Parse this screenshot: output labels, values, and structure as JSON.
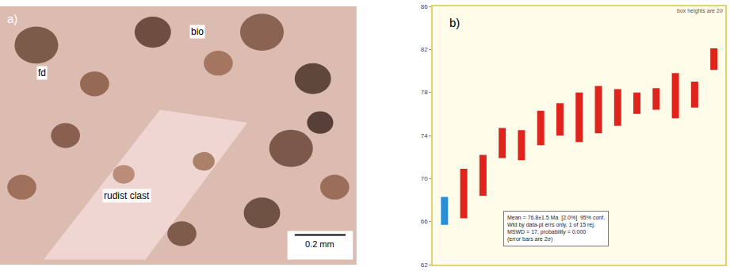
{
  "chart_data": {
    "type": "errorbar",
    "panel_label": "b)",
    "categories": [
      null,
      null,
      null,
      null,
      null,
      null,
      null,
      null,
      null,
      null,
      null,
      null,
      null,
      null,
      null
    ],
    "values": [
      67.0,
      68.6,
      70.3,
      73.3,
      73.1,
      74.7,
      75.5,
      75.7,
      76.4,
      76.6,
      77.0,
      77.4,
      77.7,
      77.8,
      81.1
    ],
    "errors": [
      1.3,
      2.3,
      1.9,
      1.4,
      1.4,
      1.6,
      1.5,
      2.3,
      2.2,
      1.7,
      1.0,
      1.0,
      2.1,
      1.2,
      1.0
    ],
    "colors": [
      "#2b8fd8",
      "#e0241c",
      "#e0241c",
      "#e0241c",
      "#e0241c",
      "#e0241c",
      "#e0241c",
      "#e0241c",
      "#e0241c",
      "#e0241c",
      "#e0241c",
      "#e0241c",
      "#e0241c",
      "#e0241c",
      "#e0241c"
    ],
    "ylim": [
      62,
      86
    ],
    "yticks": [
      62,
      66,
      70,
      74,
      78,
      82,
      86
    ],
    "grid": false,
    "tick_labels": "y",
    "corner_note": "box heights are 2σ",
    "stats_box": [
      "Mean = 76.8±1.5 Ma  [2.0%]  95% conf.",
      "Wtd by data-pt errs only, 1 of 15 rej.",
      "MSWD = 17, probability = 0.000",
      "(error bars are 2σ)"
    ]
  },
  "image_panel": {
    "panel_label": "a)",
    "labels": [
      "fd",
      "bio",
      "rudist clast"
    ],
    "scale_bar": "0.2 mm"
  }
}
